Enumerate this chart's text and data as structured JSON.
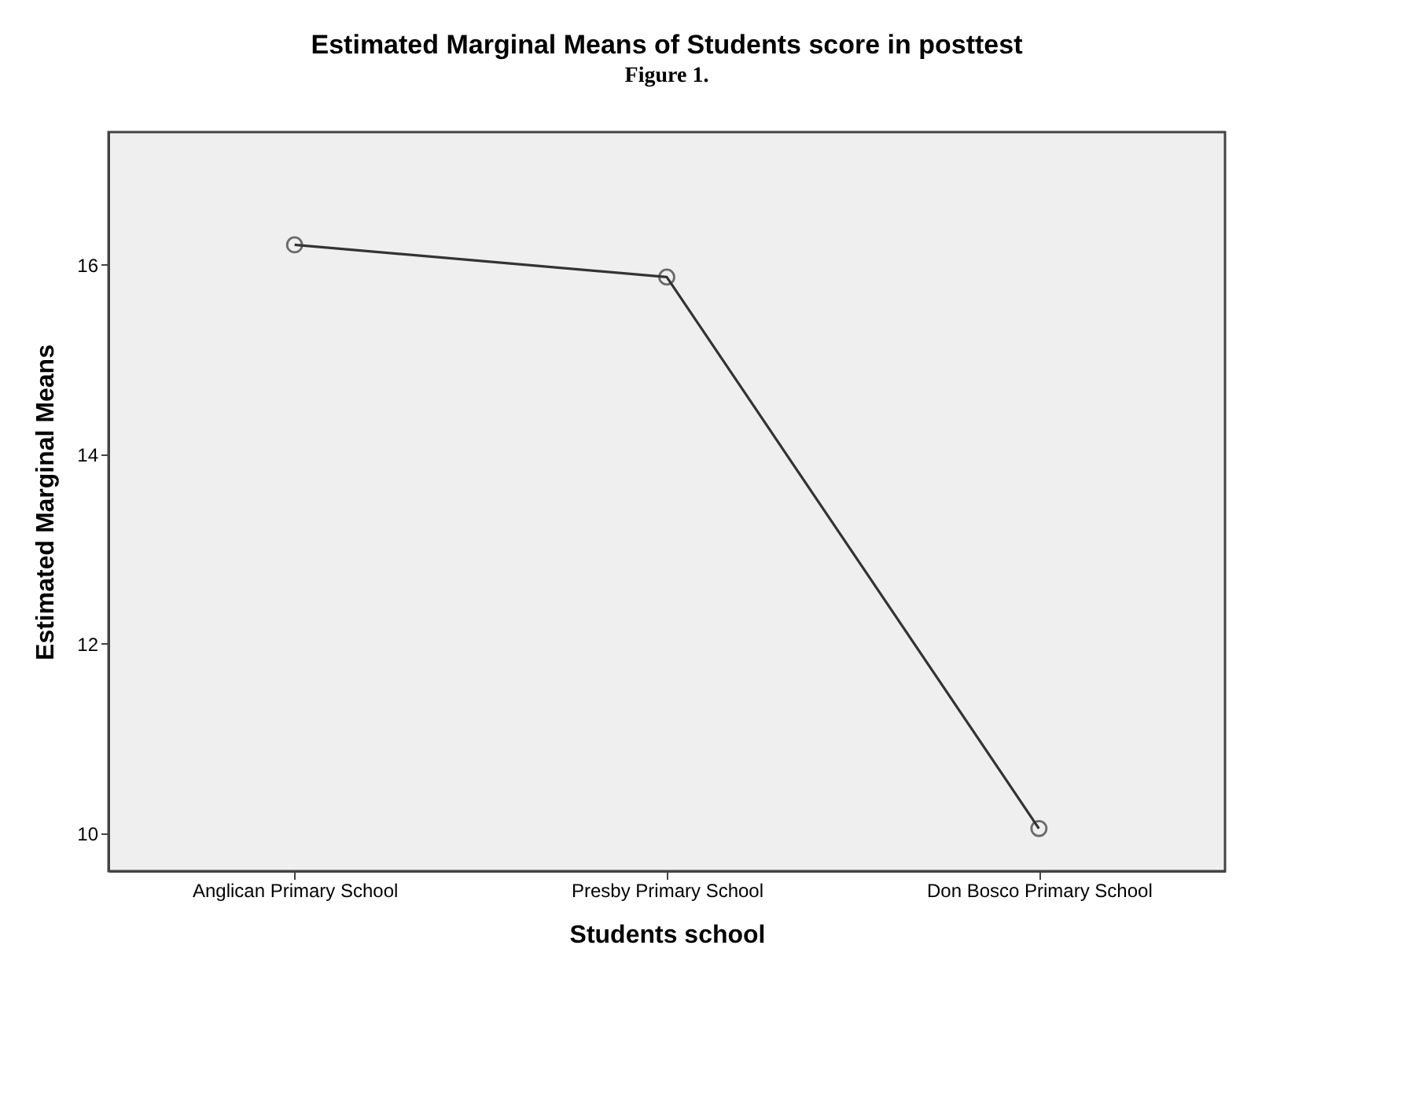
{
  "chart_data": {
    "type": "line",
    "title": "Estimated Marginal Means of Students score in posttest",
    "xlabel": "Students school",
    "ylabel": "Estimated Marginal Means",
    "annotations": [
      "Figure 1."
    ],
    "categories": [
      "Anglican Primary School",
      "Presby Primary School",
      "Don Bosco Primary School"
    ],
    "series": [
      {
        "color": "#333333",
        "values": [
          16.21,
          15.87,
          10.05
        ]
      }
    ],
    "ylim": [
      9.6,
      17.4
    ],
    "yticks": [
      10,
      12,
      14,
      16
    ],
    "grid": false,
    "legend": false,
    "marker": "circle",
    "line_style": "solid"
  }
}
